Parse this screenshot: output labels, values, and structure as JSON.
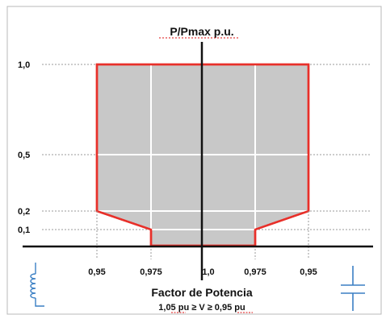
{
  "diagram": {
    "y_axis_title": "P/Pmax  p.u.",
    "x_axis_title": "Factor de Potencia",
    "subtitle": "1,05 pu ≥ V  ≥  0,95 pu",
    "y_ticks": [
      "1,0",
      "0,5",
      "0,2",
      "0,1"
    ],
    "x_ticks": [
      "0,95",
      "0,975",
      "1,0",
      "0,975",
      "0,95"
    ],
    "left_symbol": "inductor-icon",
    "right_symbol": "capacitor-icon",
    "region_fill": "#c8c8c8",
    "region_outline": "#e8302a"
  }
}
